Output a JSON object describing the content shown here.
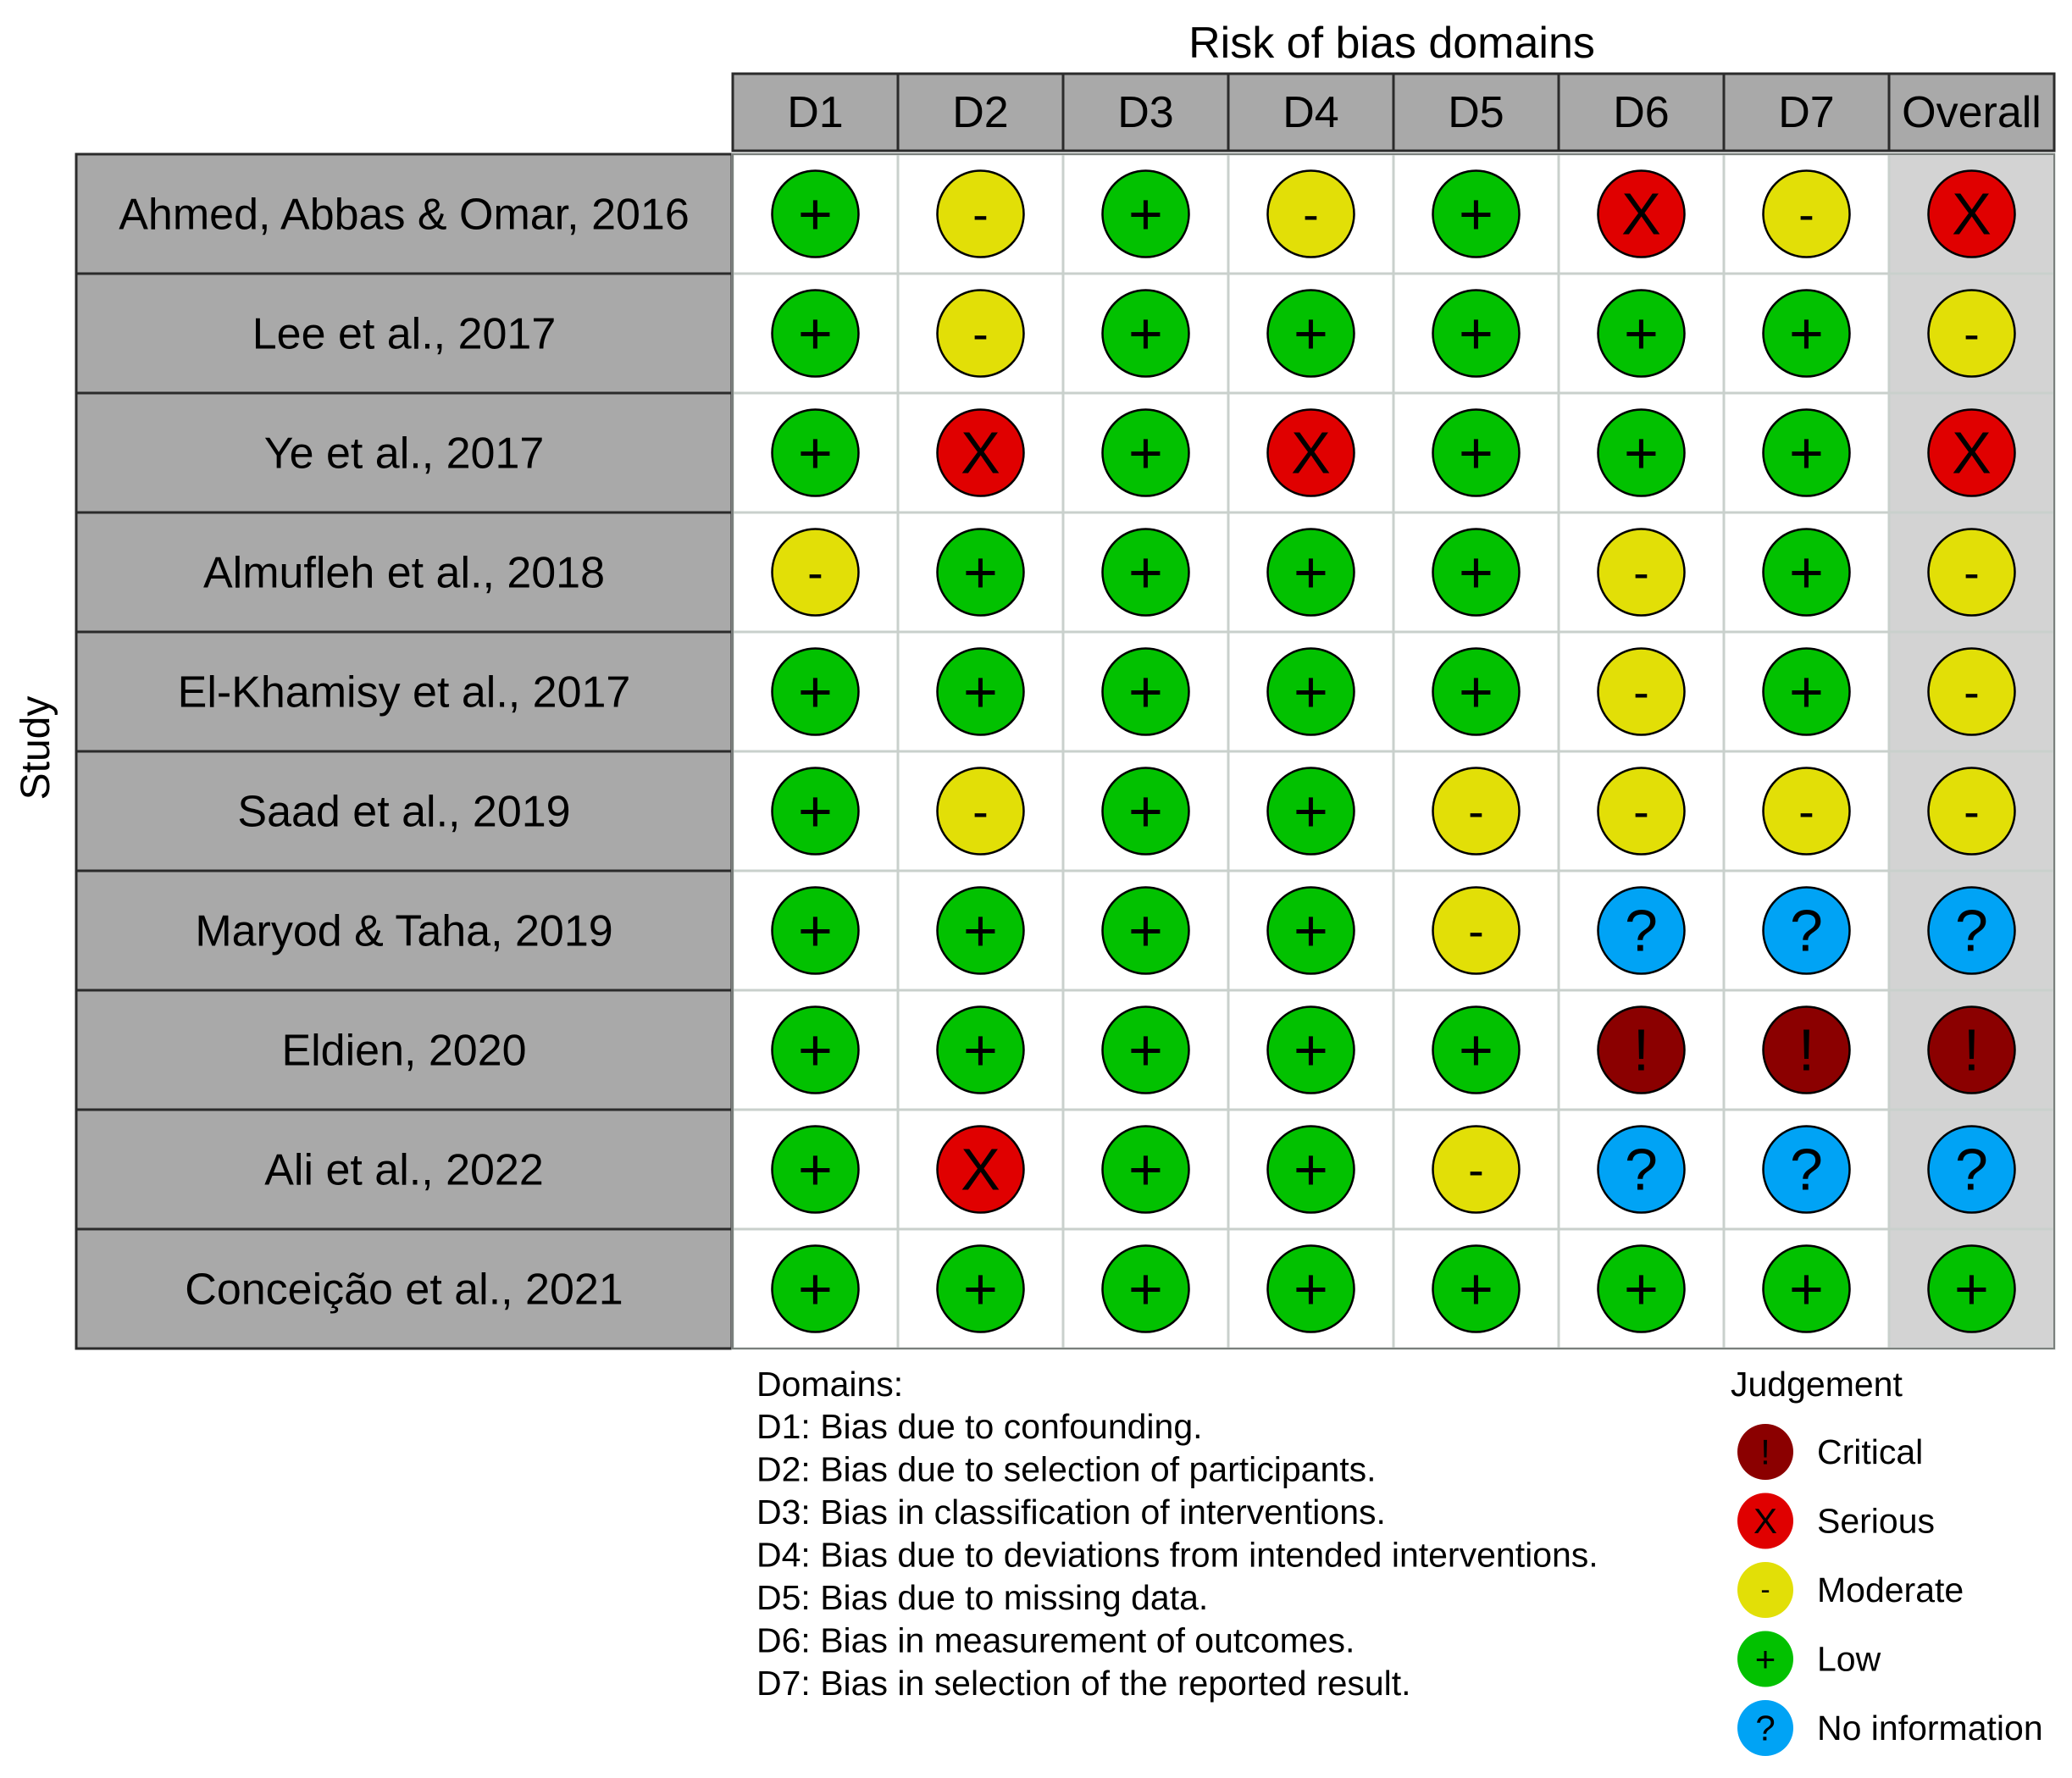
{
  "chart_data": {
    "type": "table",
    "title": "Risk of bias domains",
    "y_axis_label": "Study",
    "columns": [
      "D1",
      "D2",
      "D3",
      "D4",
      "D5",
      "D6",
      "D7",
      "Overall"
    ],
    "rows": [
      {
        "study": "Ahmed, Abbas & Omar, 2016",
        "judgements": [
          "Low",
          "Moderate",
          "Low",
          "Moderate",
          "Low",
          "Serious",
          "Moderate",
          "Serious"
        ]
      },
      {
        "study": "Lee et al., 2017",
        "judgements": [
          "Low",
          "Moderate",
          "Low",
          "Low",
          "Low",
          "Low",
          "Low",
          "Moderate"
        ]
      },
      {
        "study": "Ye et al., 2017",
        "judgements": [
          "Low",
          "Serious",
          "Low",
          "Serious",
          "Low",
          "Low",
          "Low",
          "Serious"
        ]
      },
      {
        "study": "Almufleh et al., 2018",
        "judgements": [
          "Moderate",
          "Low",
          "Low",
          "Low",
          "Low",
          "Moderate",
          "Low",
          "Moderate"
        ]
      },
      {
        "study": "El-Khamisy et al., 2017",
        "judgements": [
          "Low",
          "Low",
          "Low",
          "Low",
          "Low",
          "Moderate",
          "Low",
          "Moderate"
        ]
      },
      {
        "study": "Saad et al., 2019",
        "judgements": [
          "Low",
          "Moderate",
          "Low",
          "Low",
          "Moderate",
          "Moderate",
          "Moderate",
          "Moderate"
        ]
      },
      {
        "study": "Maryod & Taha, 2019",
        "judgements": [
          "Low",
          "Low",
          "Low",
          "Low",
          "Moderate",
          "No information",
          "No information",
          "No information"
        ]
      },
      {
        "study": "Eldien, 2020",
        "judgements": [
          "Low",
          "Low",
          "Low",
          "Low",
          "Low",
          "Critical",
          "Critical",
          "Critical"
        ]
      },
      {
        "study": "Ali et al.,  2022",
        "judgements": [
          "Low",
          "Serious",
          "Low",
          "Low",
          "Moderate",
          "No information",
          "No information",
          "No information"
        ]
      },
      {
        "study": "Conceição et al.,  2021",
        "judgements": [
          "Low",
          "Low",
          "Low",
          "Low",
          "Low",
          "Low",
          "Low",
          "Low"
        ]
      }
    ],
    "domains_title": "Domains:",
    "domain_descriptions": [
      "D1: Bias due to confounding.",
      "D2: Bias due to selection of participants.",
      "D3: Bias in classification of interventions.",
      "D4: Bias due to deviations from intended interventions.",
      "D5: Bias due to missing data.",
      "D6: Bias in measurement of outcomes.",
      "D7: Bias in selection of the reported result."
    ],
    "legend": {
      "title": "Judgement",
      "placement": "bottom-right",
      "items": [
        {
          "label": "Critical",
          "symbol": "!",
          "color": "#8b0000"
        },
        {
          "label": "Serious",
          "symbol": "X",
          "color": "#e00000"
        },
        {
          "label": "Moderate",
          "symbol": "-",
          "color": "#e2df07"
        },
        {
          "label": "Low",
          "symbol": "+",
          "color": "#02c100"
        },
        {
          "label": "No information",
          "symbol": "?",
          "color": "#00a3f5"
        }
      ]
    },
    "colors": {
      "header_fill": "#a9a9a9",
      "study_fill": "#a9a9a9",
      "overall_fill": "#d3d3d3",
      "cell_fill": "#ffffff"
    }
  }
}
